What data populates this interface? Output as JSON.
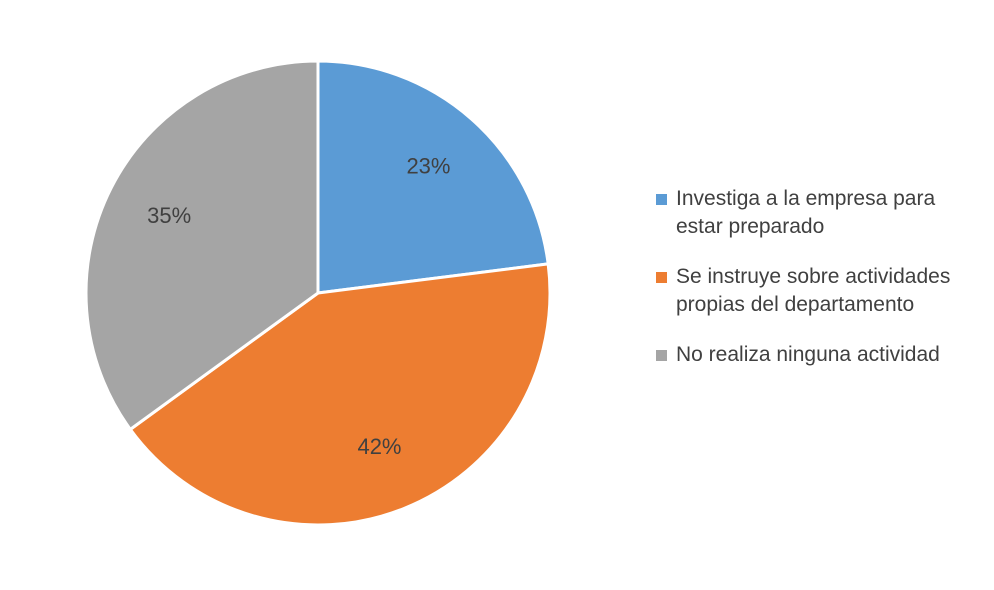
{
  "chart_data": {
    "type": "pie",
    "title": "",
    "start_angle_deg": 0,
    "direction": "clockwise",
    "legend_position": "right",
    "slices": [
      {
        "label": "Investiga a la empresa para estar preparado",
        "value": 23,
        "display": "23%",
        "color": "#5B9BD5"
      },
      {
        "label": "Se instruye sobre actividades propias del departamento",
        "value": 42,
        "display": "42%",
        "color": "#ED7D31"
      },
      {
        "label": "No realiza ninguna actividad",
        "value": 35,
        "display": "35%",
        "color": "#A5A5A5"
      }
    ]
  }
}
